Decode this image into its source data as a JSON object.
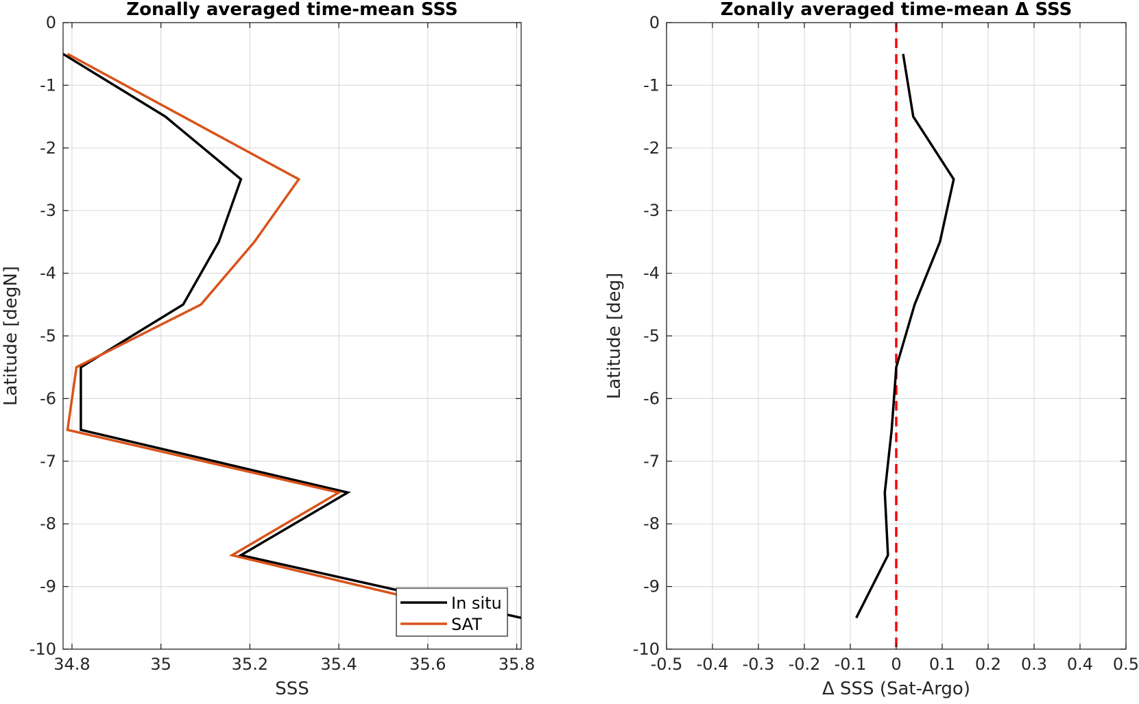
{
  "chart_data": [
    {
      "type": "line",
      "title": "Zonally averaged time-mean SSS",
      "xlabel": "SSS",
      "ylabel": "Latitude [degN]",
      "xlim": [
        34.78,
        35.81
      ],
      "ylim": [
        -10,
        0
      ],
      "xticks": [
        34.8,
        35,
        35.2,
        35.4,
        35.6,
        35.8
      ],
      "xtick_labels": [
        "34.8",
        "35",
        "35.2",
        "35.4",
        "35.6",
        "35.8"
      ],
      "yticks": [
        0,
        -1,
        -2,
        -3,
        -4,
        -5,
        -6,
        -7,
        -8,
        -9,
        -10
      ],
      "ytick_labels": [
        "0",
        "-1",
        "-2",
        "-3",
        "-4",
        "-5",
        "-6",
        "-7",
        "-8",
        "-9",
        "-10"
      ],
      "grid": true,
      "legend_position": "bottom-right",
      "series": [
        {
          "name": "In situ",
          "color": "#000000",
          "x": [
            34.78,
            35.01,
            35.18,
            35.13,
            35.05,
            34.82,
            34.82,
            35.42,
            35.18,
            35.81
          ],
          "y": [
            -0.5,
            -1.5,
            -2.5,
            -3.5,
            -4.5,
            -5.5,
            -6.5,
            -7.5,
            -8.5,
            -9.5
          ]
        },
        {
          "name": "SAT",
          "color": "#D95319",
          "x": [
            34.79,
            35.05,
            35.31,
            35.21,
            35.09,
            34.81,
            34.79,
            35.4,
            35.16,
            35.75
          ],
          "y": [
            -0.5,
            -1.5,
            -2.5,
            -3.5,
            -4.5,
            -5.5,
            -6.5,
            -7.5,
            -8.5,
            -9.5
          ]
        }
      ]
    },
    {
      "type": "line",
      "title": "Zonally averaged time-mean Δ SSS",
      "xlabel": "Δ SSS (Sat-Argo)",
      "ylabel": "Latitude [deg]",
      "xlim": [
        -0.5,
        0.5
      ],
      "ylim": [
        -10,
        0
      ],
      "xticks": [
        -0.5,
        -0.4,
        -0.3,
        -0.2,
        -0.1,
        0,
        0.1,
        0.2,
        0.3,
        0.4,
        0.5
      ],
      "xtick_labels": [
        "-0.5",
        "-0.4",
        "-0.3",
        "-0.2",
        "-0.1",
        "0",
        "0.1",
        "0.2",
        "0.3",
        "0.4",
        "0.5"
      ],
      "yticks": [
        0,
        -1,
        -2,
        -3,
        -4,
        -5,
        -6,
        -7,
        -8,
        -9,
        -10
      ],
      "ytick_labels": [
        "0",
        "-1",
        "-2",
        "-3",
        "-4",
        "-5",
        "-6",
        "-7",
        "-8",
        "-9",
        "-10"
      ],
      "grid": true,
      "reference_line": {
        "x": 0,
        "color": "#FF0000",
        "style": "dashed"
      },
      "series": [
        {
          "color": "#000000",
          "x": [
            0.015,
            0.037,
            0.125,
            0.095,
            0.04,
            0.0,
            -0.01,
            -0.025,
            -0.018,
            -0.087
          ],
          "y": [
            -0.5,
            -1.5,
            -2.5,
            -3.5,
            -4.5,
            -5.5,
            -6.5,
            -7.5,
            -8.5,
            -9.5
          ]
        }
      ]
    }
  ]
}
